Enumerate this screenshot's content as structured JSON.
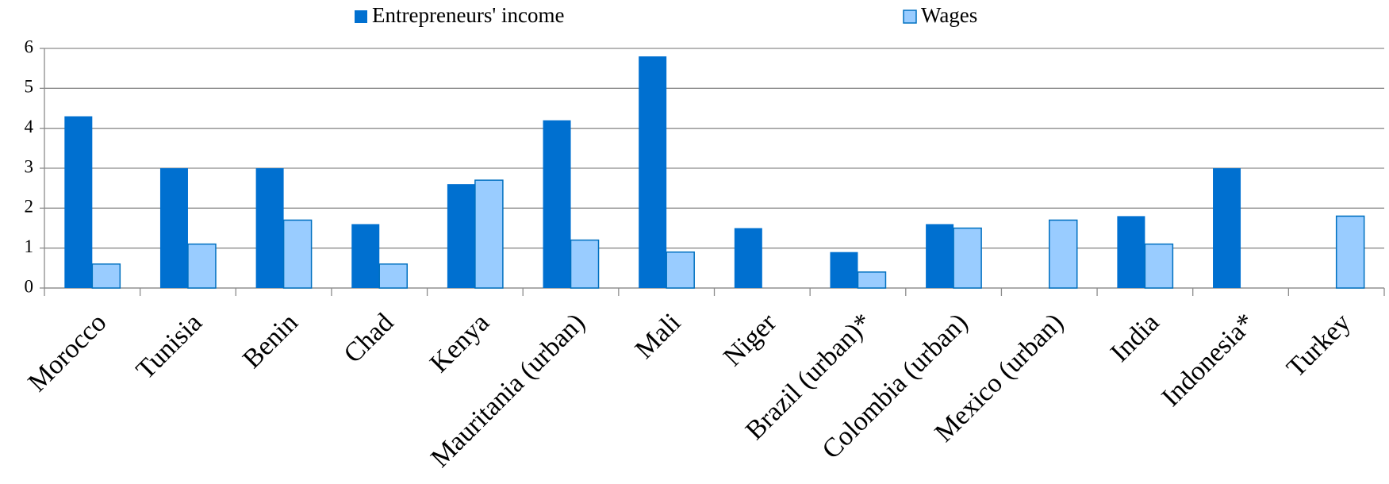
{
  "chart_data": {
    "type": "bar",
    "categories": [
      "Morocco",
      "Tunisia",
      "Benin",
      "Chad",
      "Kenya",
      "Mauritania (urban)",
      "Mali",
      "Niger",
      "Brazil (urban)*",
      "Colombia (urban)",
      "Mexico (urban)",
      "India",
      "Indonesia*",
      "Turkey"
    ],
    "series": [
      {
        "name": "Entrepreneurs' income",
        "color": "#0070d0",
        "values": [
          4.3,
          3.0,
          3.0,
          1.6,
          2.6,
          4.2,
          5.8,
          1.5,
          0.9,
          1.6,
          null,
          1.8,
          3.0,
          null
        ]
      },
      {
        "name": "Wages",
        "color": "#99ccff",
        "values": [
          0.6,
          1.1,
          1.7,
          0.6,
          2.7,
          1.2,
          0.9,
          null,
          0.4,
          1.5,
          1.7,
          1.1,
          null,
          1.8
        ]
      }
    ],
    "ylim": [
      0,
      6
    ],
    "yticks": [
      0,
      1,
      2,
      3,
      4,
      5,
      6
    ],
    "grid": true,
    "legend": "top"
  }
}
